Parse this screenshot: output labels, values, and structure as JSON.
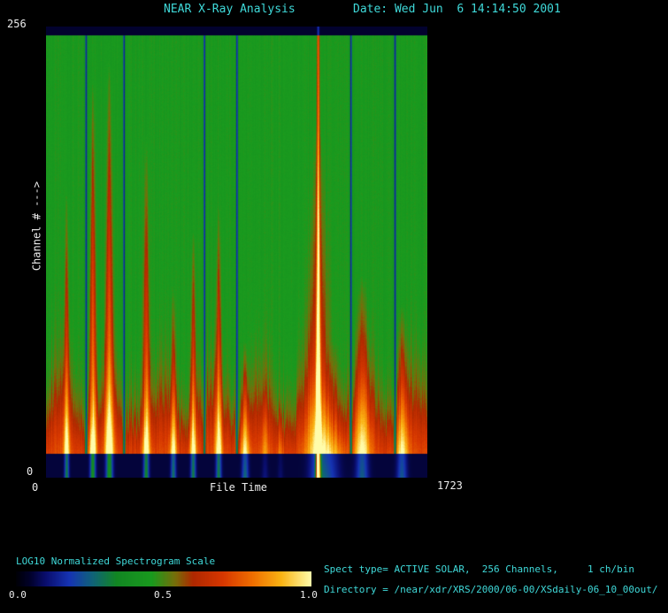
{
  "header": {
    "title": "NEAR X-Ray Analysis",
    "date": "Date: Wed Jun  6 14:14:50 2001"
  },
  "axes": {
    "y_max": "256",
    "y_min": "0",
    "y_title": "Channel # --->",
    "x_min": "0",
    "x_title": "File Time",
    "x_max": "1723"
  },
  "colorbar": {
    "title": "LOG10 Normalized Spectrogram Scale",
    "ticks": [
      "0.0",
      "0.5",
      "1.0"
    ]
  },
  "footer": {
    "spect_line": "Spect type= ACTIVE SOLAR,  256 Channels,     1 ch/bin",
    "directory_line": "Directory = /near/xdr/XRS/2000/06-00/XSdaily-06_10_00out/"
  },
  "colors": {
    "text_cyan": "#3fd9d9",
    "text_white": "#ededed",
    "background": "#000000"
  },
  "chart_data": {
    "type": "heatmap",
    "title": "NEAR X-Ray Analysis",
    "xlabel": "File Time",
    "ylabel": "Channel #",
    "xlim": [
      0,
      1723
    ],
    "ylim": [
      0,
      256
    ],
    "colorbar_label": "LOG10 Normalized Spectrogram Scale",
    "colorbar_range": [
      0.0,
      1.0
    ],
    "spect_type": "ACTIVE SOLAR",
    "channels": 256,
    "ch_per_bin": 1,
    "background_value": 0.45,
    "low_channel_band": {
      "peak_value": 0.75,
      "extent_channels": 55
    },
    "blank_bands": {
      "bottom_channels": [
        0,
        13
      ],
      "top_channels": [
        251,
        256
      ],
      "value": 0.05
    },
    "flares": [
      {
        "file_time": 92,
        "tip_channel": 164,
        "amp": 0.4,
        "width_ft": 14
      },
      {
        "file_time": 210,
        "tip_channel": 225,
        "amp": 0.45,
        "width_ft": 17
      },
      {
        "file_time": 285,
        "tip_channel": 238,
        "amp": 0.45,
        "width_ft": 21
      },
      {
        "file_time": 452,
        "tip_channel": 195,
        "amp": 0.42,
        "width_ft": 17
      },
      {
        "file_time": 575,
        "tip_channel": 108,
        "amp": 0.38,
        "width_ft": 16
      },
      {
        "file_time": 665,
        "tip_channel": 140,
        "amp": 0.4,
        "width_ft": 16
      },
      {
        "file_time": 780,
        "tip_channel": 154,
        "amp": 0.4,
        "width_ft": 17
      },
      {
        "file_time": 900,
        "tip_channel": 77,
        "amp": 0.36,
        "width_ft": 21
      },
      {
        "file_time": 990,
        "tip_channel": 50,
        "amp": 0.18,
        "width_ft": 20
      },
      {
        "file_time": 1060,
        "tip_channel": 45,
        "amp": 0.15,
        "width_ft": 18
      },
      {
        "file_time": 1231,
        "tip_channel": 256,
        "amp": 0.62,
        "width_ft": 10,
        "profile": "column",
        "label": "major flare"
      },
      {
        "file_time": 1231,
        "tip_channel": 200,
        "amp": 0.32,
        "width_ft": 55
      },
      {
        "file_time": 1300,
        "tip_channel": 77,
        "amp": 0.2,
        "width_ft": 52
      },
      {
        "file_time": 1430,
        "tip_channel": 115,
        "amp": 0.34,
        "width_ft": 38
      },
      {
        "file_time": 1610,
        "tip_channel": 97,
        "amp": 0.33,
        "width_ft": 31
      }
    ],
    "gaps": [
      180,
      352,
      716,
      863,
      1379,
      1579
    ],
    "gap_width_ft": 5,
    "colormap_stops": [
      [
        0.0,
        0,
        0,
        6
      ],
      [
        0.05,
        2,
        2,
        46
      ],
      [
        0.1,
        10,
        14,
        110
      ],
      [
        0.18,
        22,
        52,
        180
      ],
      [
        0.26,
        16,
        100,
        120
      ],
      [
        0.34,
        18,
        135,
        35
      ],
      [
        0.46,
        26,
        155,
        30
      ],
      [
        0.54,
        120,
        110,
        10
      ],
      [
        0.6,
        175,
        40,
        0
      ],
      [
        0.7,
        215,
        55,
        0
      ],
      [
        0.8,
        240,
        110,
        0
      ],
      [
        0.9,
        250,
        180,
        20
      ],
      [
        1.0,
        255,
        252,
        170
      ]
    ]
  }
}
